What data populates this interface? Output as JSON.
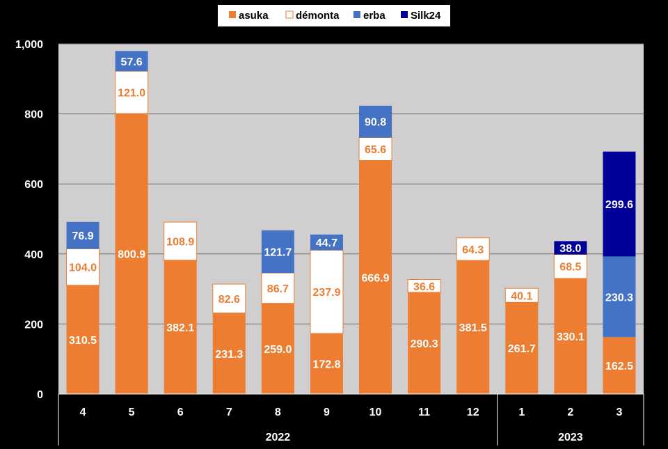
{
  "chart_data": {
    "type": "bar",
    "stacked": true,
    "categories": [
      "4",
      "5",
      "6",
      "7",
      "8",
      "9",
      "10",
      "11",
      "12",
      "1",
      "2",
      "3"
    ],
    "year_groups": [
      {
        "label": "2022",
        "count": 9
      },
      {
        "label": "2023",
        "count": 3
      }
    ],
    "series": [
      {
        "name": "asuka",
        "color": "#ED7D31",
        "values": [
          310.5,
          800.9,
          382.1,
          231.3,
          259.0,
          172.8,
          666.9,
          290.3,
          381.5,
          261.7,
          330.1,
          162.5
        ]
      },
      {
        "name": "démonta",
        "color": "#FFFFFF",
        "values": [
          104.0,
          121.0,
          108.9,
          82.6,
          86.7,
          237.9,
          65.6,
          36.6,
          64.3,
          40.1,
          68.5,
          null
        ]
      },
      {
        "name": "erba",
        "color": "#4472C4",
        "values": [
          76.9,
          57.6,
          null,
          null,
          121.7,
          44.7,
          90.8,
          null,
          null,
          null,
          null,
          230.3
        ]
      },
      {
        "name": "Silk24",
        "color": "#000099",
        "values": [
          null,
          null,
          null,
          null,
          null,
          null,
          null,
          null,
          null,
          null,
          38.0,
          299.6
        ]
      }
    ],
    "ylim": [
      0,
      1000
    ],
    "yticks": [
      0,
      200,
      400,
      600,
      800,
      1000
    ],
    "ytick_labels": [
      "0",
      "200",
      "400",
      "600",
      "800",
      "1,000"
    ],
    "grid": true,
    "legend_position": "top-center",
    "plot_background": "#D0CECE",
    "label_color_on_white": "#ED7D31",
    "label_color_on_fill": "#FFFFFF"
  }
}
